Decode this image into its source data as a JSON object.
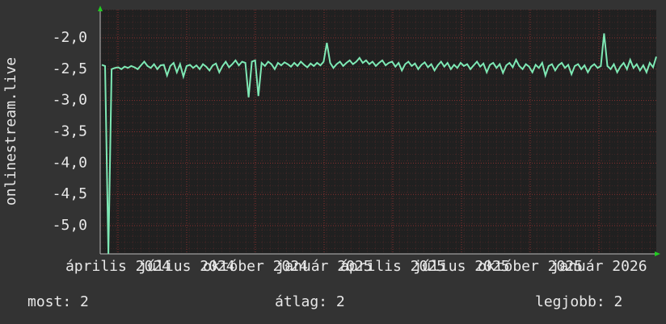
{
  "chart_data": {
    "type": "line",
    "y_label": "onlinestream.live",
    "xtick_labels": [
      "április 2024",
      "július 2024",
      "október 2024",
      "január 2025",
      "április 2025",
      "július 2025",
      "október 2025",
      "január 2026"
    ],
    "series": [
      {
        "name": "onlinestream.live",
        "color": "#7ee8b4",
        "values": [
          -2.43,
          -2.45,
          -5.45,
          -2.5,
          -2.48,
          -2.47,
          -2.5,
          -2.46,
          -2.48,
          -2.45,
          -2.47,
          -2.5,
          -2.44,
          -2.38,
          -2.45,
          -2.48,
          -2.42,
          -2.5,
          -2.44,
          -2.43,
          -2.6,
          -2.45,
          -2.4,
          -2.55,
          -2.42,
          -2.62,
          -2.45,
          -2.43,
          -2.48,
          -2.44,
          -2.5,
          -2.42,
          -2.46,
          -2.52,
          -2.44,
          -2.41,
          -2.55,
          -2.45,
          -2.38,
          -2.47,
          -2.42,
          -2.36,
          -2.44,
          -2.38,
          -2.4,
          -2.95,
          -2.38,
          -2.36,
          -2.93,
          -2.4,
          -2.45,
          -2.38,
          -2.42,
          -2.5,
          -2.4,
          -2.44,
          -2.39,
          -2.42,
          -2.46,
          -2.4,
          -2.45,
          -2.38,
          -2.43,
          -2.47,
          -2.41,
          -2.45,
          -2.4,
          -2.44,
          -2.38,
          -2.08,
          -2.4,
          -2.48,
          -2.42,
          -2.38,
          -2.45,
          -2.4,
          -2.36,
          -2.42,
          -2.38,
          -2.32,
          -2.4,
          -2.36,
          -2.42,
          -2.38,
          -2.45,
          -2.4,
          -2.36,
          -2.44,
          -2.4,
          -2.38,
          -2.46,
          -2.4,
          -2.52,
          -2.42,
          -2.38,
          -2.45,
          -2.41,
          -2.5,
          -2.43,
          -2.39,
          -2.47,
          -2.42,
          -2.52,
          -2.44,
          -2.38,
          -2.46,
          -2.4,
          -2.5,
          -2.43,
          -2.48,
          -2.4,
          -2.45,
          -2.42,
          -2.5,
          -2.44,
          -2.38,
          -2.46,
          -2.41,
          -2.55,
          -2.43,
          -2.4,
          -2.48,
          -2.42,
          -2.56,
          -2.44,
          -2.4,
          -2.47,
          -2.35,
          -2.45,
          -2.5,
          -2.42,
          -2.46,
          -2.55,
          -2.43,
          -2.48,
          -2.4,
          -2.6,
          -2.45,
          -2.42,
          -2.52,
          -2.44,
          -2.4,
          -2.48,
          -2.43,
          -2.58,
          -2.45,
          -2.42,
          -2.5,
          -2.44,
          -2.55,
          -2.46,
          -2.42,
          -2.48,
          -2.45,
          -1.93,
          -2.45,
          -2.5,
          -2.42,
          -2.55,
          -2.46,
          -2.4,
          -2.5,
          -2.35,
          -2.48,
          -2.42,
          -2.52,
          -2.44,
          -2.55,
          -2.4,
          -2.47,
          -2.3
        ]
      }
    ],
    "ylim": [
      -5.45,
      -1.55
    ],
    "yticks": [
      {
        "value": -2.0,
        "label": "-2,0"
      },
      {
        "value": -2.5,
        "label": "-2,5"
      },
      {
        "value": -3.0,
        "label": "-3,0"
      },
      {
        "value": -3.5,
        "label": "-3,5"
      },
      {
        "value": -4.0,
        "label": "-4,0"
      },
      {
        "value": -4.5,
        "label": "-4,5"
      },
      {
        "value": -5.0,
        "label": "-5,0"
      }
    ],
    "grid": true,
    "stats": [
      {
        "label": "most:",
        "value": 2
      },
      {
        "label": "átlag:",
        "value": 2
      },
      {
        "label": "legjobb:",
        "value": 2
      }
    ]
  }
}
